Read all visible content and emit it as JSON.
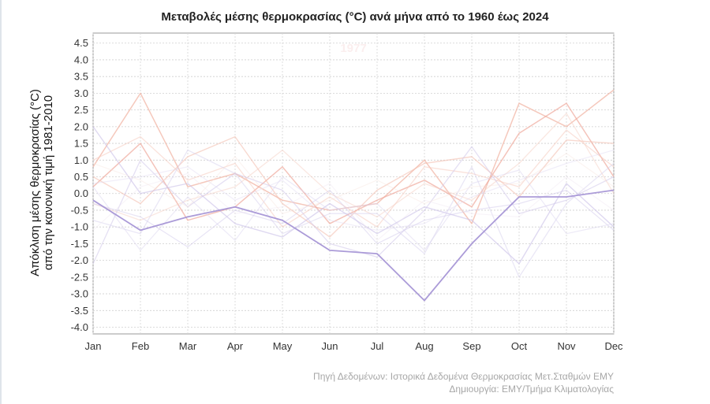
{
  "chart_data": {
    "type": "line",
    "title": "Μεταβολές μέσης θερμοκρασίας (°C) ανά μήνα από το 1960 έως 2024",
    "ylabel_line1": "Απόκλιση μέσης θερμοκρασίας (°C)",
    "ylabel_line2": "από την κανονική τιμή 1981-2010",
    "xlabel": "",
    "categories": [
      "Jan",
      "Feb",
      "Mar",
      "Apr",
      "May",
      "Jun",
      "Jul",
      "Aug",
      "Sep",
      "Oct",
      "Nov",
      "Dec"
    ],
    "ylim": [
      -4.2,
      4.8
    ],
    "yticks": [
      4.5,
      4.0,
      3.5,
      3.0,
      2.5,
      2.0,
      1.5,
      1.0,
      0.5,
      0.0,
      -0.5,
      -1.0,
      -1.5,
      -2.0,
      -2.5,
      -3.0,
      -3.5,
      -4.0
    ],
    "ytick_labels": [
      "4.5",
      "4.0",
      "3.5",
      "3.0",
      "2.5",
      "2.0",
      "1.5",
      "1.0",
      "0.5",
      "0.0",
      "-0.5",
      "-1.0",
      "-1.5",
      "-2.0",
      "-2.5",
      "-3.0",
      "-3.5",
      "-4.0"
    ],
    "highlighted_year": "1977",
    "grid": true,
    "series": [
      {
        "name": "1977",
        "color": "#a796d6",
        "opacity": 0.95,
        "width": 1.8,
        "values": [
          -0.2,
          -1.1,
          -0.7,
          -0.4,
          -0.8,
          -1.7,
          -1.8,
          -3.2,
          -1.5,
          -0.1,
          -0.1,
          0.1
        ]
      },
      {
        "name": "warm-a",
        "color": "#f2b5a6",
        "opacity": 0.75,
        "width": 1.5,
        "values": [
          0.8,
          3.0,
          0.2,
          0.6,
          -0.2,
          -0.5,
          -0.3,
          1.0,
          -0.9,
          2.7,
          2.0,
          3.1
        ]
      },
      {
        "name": "warm-b",
        "color": "#f0aa9c",
        "opacity": 0.7,
        "width": 1.5,
        "values": [
          0.2,
          1.5,
          -0.8,
          -0.4,
          0.8,
          -0.9,
          -0.2,
          0.4,
          -0.4,
          1.8,
          2.7,
          0.5
        ]
      },
      {
        "name": "warm-c",
        "color": "#f4c0b1",
        "opacity": 0.6,
        "width": 1.4,
        "values": [
          0.5,
          -0.3,
          1.1,
          1.7,
          -0.3,
          -1.3,
          0.1,
          0.9,
          1.1,
          -0.1,
          1.6,
          1.5
        ]
      },
      {
        "name": "warm-d",
        "color": "#f5cbbd",
        "opacity": 0.55,
        "width": 1.3,
        "values": [
          1.0,
          1.7,
          0.4,
          0.9,
          -1.0,
          -0.1,
          -1.0,
          0.8,
          0.6,
          0.2,
          1.9,
          0.8
        ]
      },
      {
        "name": "warm-e",
        "color": "#f6d0c4",
        "opacity": 0.5,
        "width": 1.3,
        "values": [
          -0.3,
          -0.8,
          -0.2,
          0.2,
          1.3,
          0.0,
          -0.7,
          0.3,
          -0.2,
          0.9,
          2.4,
          0.0
        ]
      },
      {
        "name": "cool-a",
        "color": "#c9bfe8",
        "opacity": 0.6,
        "width": 1.4,
        "values": [
          2.0,
          0.0,
          0.3,
          -0.9,
          -1.3,
          -0.3,
          -1.2,
          -0.4,
          -0.8,
          -2.1,
          0.3,
          -1.0
        ]
      },
      {
        "name": "cool-b",
        "color": "#cfc6ea",
        "opacity": 0.55,
        "width": 1.3,
        "values": [
          -2.1,
          1.0,
          -0.4,
          0.6,
          0.1,
          -1.5,
          -1.9,
          -0.5,
          1.4,
          -0.6,
          -0.2,
          0.5
        ]
      },
      {
        "name": "cool-c",
        "color": "#d6cfee",
        "opacity": 0.5,
        "width": 1.3,
        "values": [
          -0.8,
          -1.2,
          1.3,
          0.6,
          -1.2,
          -0.6,
          -0.6,
          -1.8,
          0.8,
          -2.5,
          -0.3,
          0.9
        ]
      },
      {
        "name": "cool-d",
        "color": "#dcd6f0",
        "opacity": 0.5,
        "width": 1.2,
        "values": [
          0.2,
          -1.7,
          -0.1,
          -1.4,
          0.5,
          -0.5,
          -0.3,
          -1.7,
          0.3,
          0.7,
          -1.2,
          -0.9
        ]
      },
      {
        "name": "cool-e",
        "color": "#d2caec",
        "opacity": 0.5,
        "width": 1.2,
        "values": [
          -0.3,
          -0.7,
          -1.6,
          -0.5,
          -0.9,
          0.1,
          -1.5,
          -0.8,
          -0.5,
          -0.3,
          0.1,
          -1.1
        ]
      },
      {
        "name": "cool-f",
        "color": "#e0daf2",
        "opacity": 0.45,
        "width": 1.2,
        "values": [
          0.3,
          0.5,
          0.8,
          -0.2,
          0.4,
          -0.8,
          -1.1,
          -0.9,
          -0.1,
          0.4,
          0.9,
          1.3
        ]
      },
      {
        "name": "pale-a",
        "color": "#efe6f2",
        "opacity": 0.45,
        "width": 1.1,
        "values": [
          -1.1,
          0.2,
          0.6,
          -0.6,
          -0.4,
          0.3,
          -1.4,
          -0.2,
          -0.6,
          -0.7,
          0.5,
          -0.5
        ]
      },
      {
        "name": "pale-b",
        "color": "#f7e4dd",
        "opacity": 0.45,
        "width": 1.1,
        "values": [
          0.9,
          0.4,
          -0.4,
          1.1,
          -0.6,
          -0.2,
          0.4,
          -0.3,
          0.2,
          0.3,
          1.2,
          0.2
        ]
      }
    ]
  },
  "caption_line1": "Πηγή Δεδομένων: Ιστορικά Δεδομένα Θερμοκρασίας Μετ.Σταθμών ΕΜΥ",
  "caption_line2": "Δημιουργία: ΕΜΥ/Τμήμα Κλιματολογίας"
}
